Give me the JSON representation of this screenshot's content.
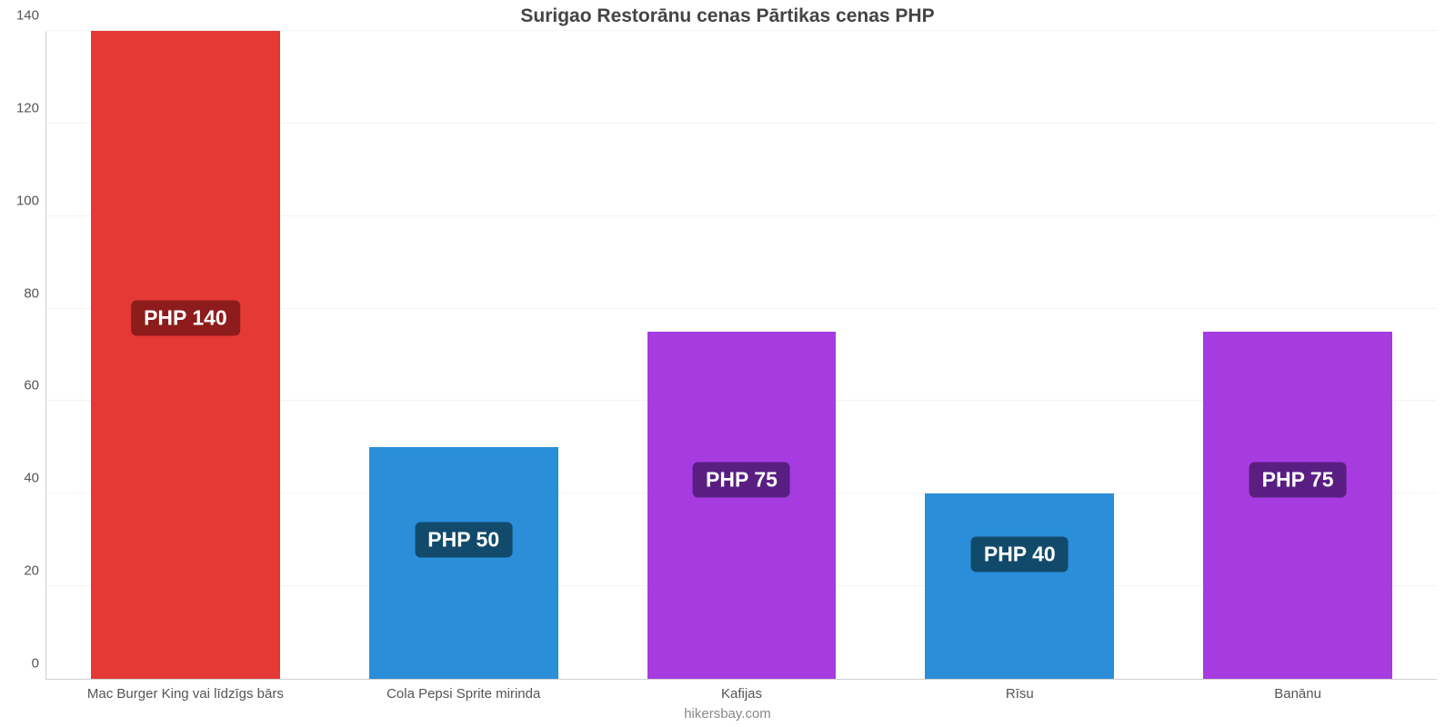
{
  "chart": {
    "type": "bar",
    "title": "Surigao Restorānu cenas Pārtikas cenas PHP",
    "title_fontsize": 21,
    "title_color": "#444444",
    "attribution": "hikersbay.com",
    "attribution_fontsize": 15,
    "attribution_color": "#888888",
    "background_color": "#ffffff",
    "grid_color": "#f3f3f3",
    "axis_color": "#d0d0d0",
    "ylim": [
      0,
      140
    ],
    "ytick_step": 20,
    "tick_fontsize": 15,
    "tick_color": "#555555",
    "bar_width": 0.68,
    "badge_fontsize": 23,
    "categories": [
      "Mac Burger King vai līdzīgs bārs",
      "Cola Pepsi Sprite mirinda",
      "Kafijas",
      "Rīsu",
      "Banānu"
    ],
    "values": [
      140,
      50,
      75,
      40,
      75
    ],
    "value_labels": [
      "PHP 140",
      "PHP 50",
      "PHP 75",
      "PHP 40",
      "PHP 75"
    ],
    "bar_colors": [
      "#e53935",
      "#2a8ed8",
      "#a63be0",
      "#2a8ed8",
      "#a63be0"
    ],
    "badge_bg_colors": [
      "#8e1c1c",
      "#124a6c",
      "#5a1e82",
      "#124a6c",
      "#5a1e82"
    ],
    "badge_value_y": [
      78,
      30,
      43,
      27,
      43
    ]
  }
}
